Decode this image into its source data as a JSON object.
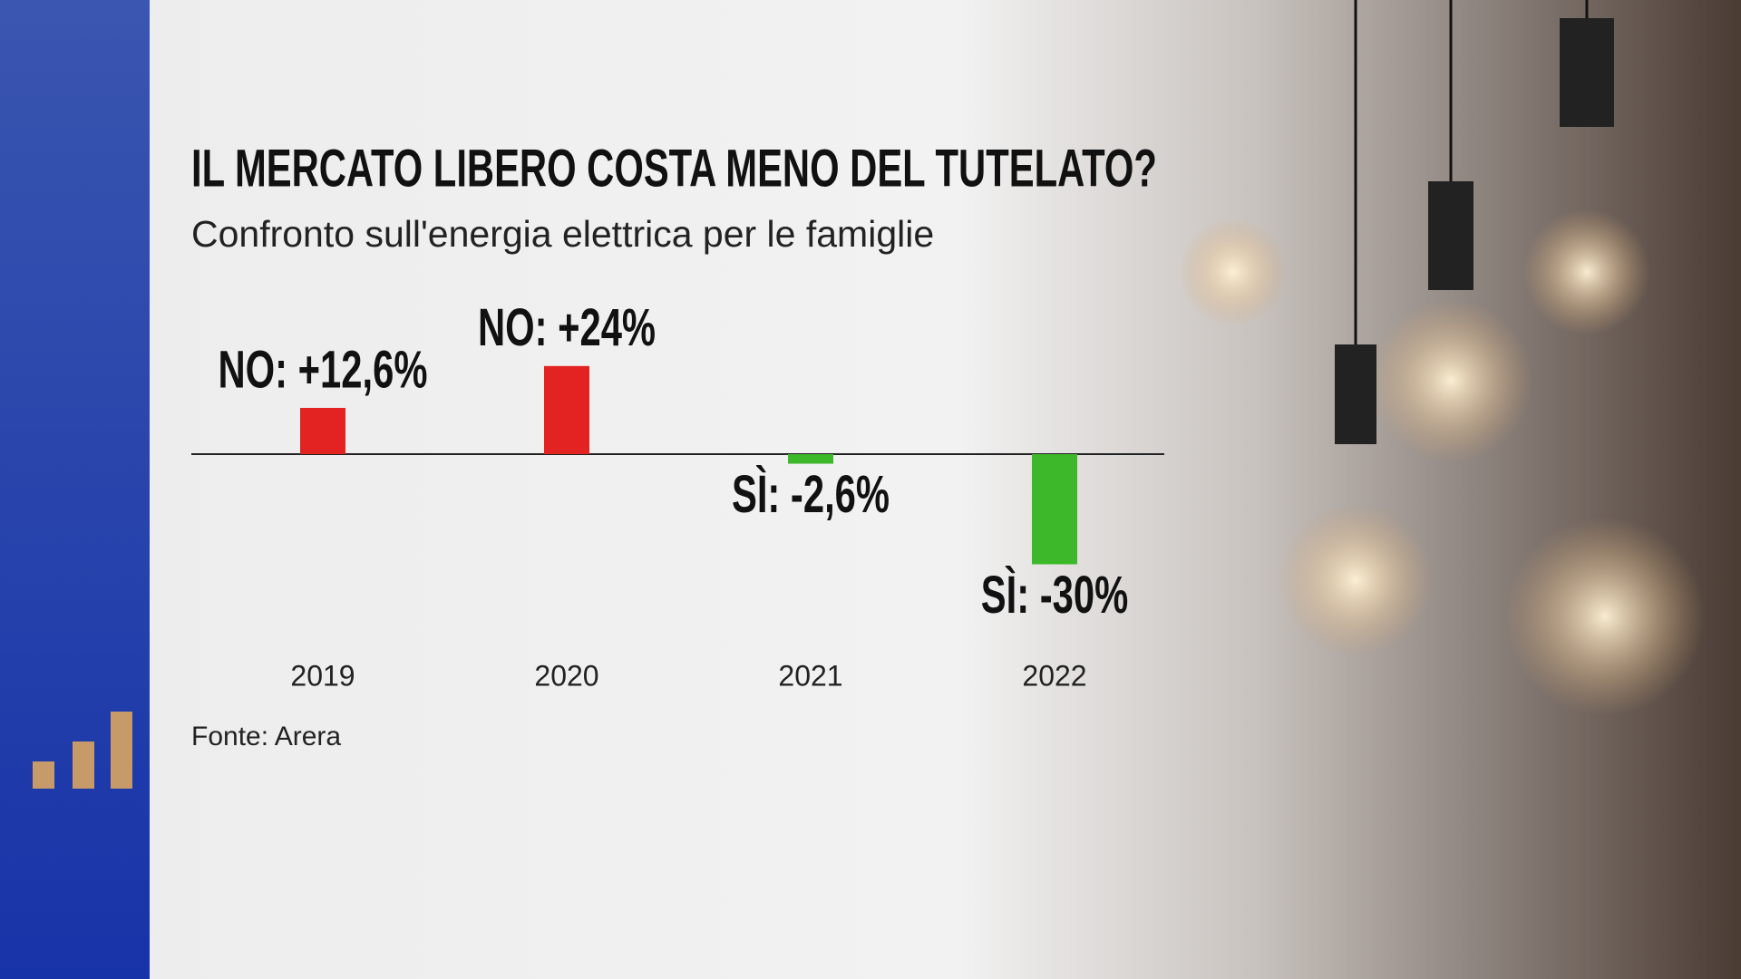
{
  "chart_data": {
    "type": "bar",
    "title": "IL MERCATO LIBERO COSTA MENO DEL TUTELATO?",
    "subtitle": "Confronto sull'energia elettrica per le famiglie",
    "categories": [
      "2019",
      "2020",
      "2021",
      "2022"
    ],
    "values": [
      12.6,
      24,
      -2.6,
      -30
    ],
    "value_labels": [
      "NO: +12,6%",
      "NO: +24%",
      "SÌ: -2,6%",
      "SÌ: -30%"
    ],
    "colors": [
      "#e32322",
      "#e32322",
      "#3cb82a",
      "#3cb82a"
    ],
    "source": "Fonte: Arera"
  }
}
